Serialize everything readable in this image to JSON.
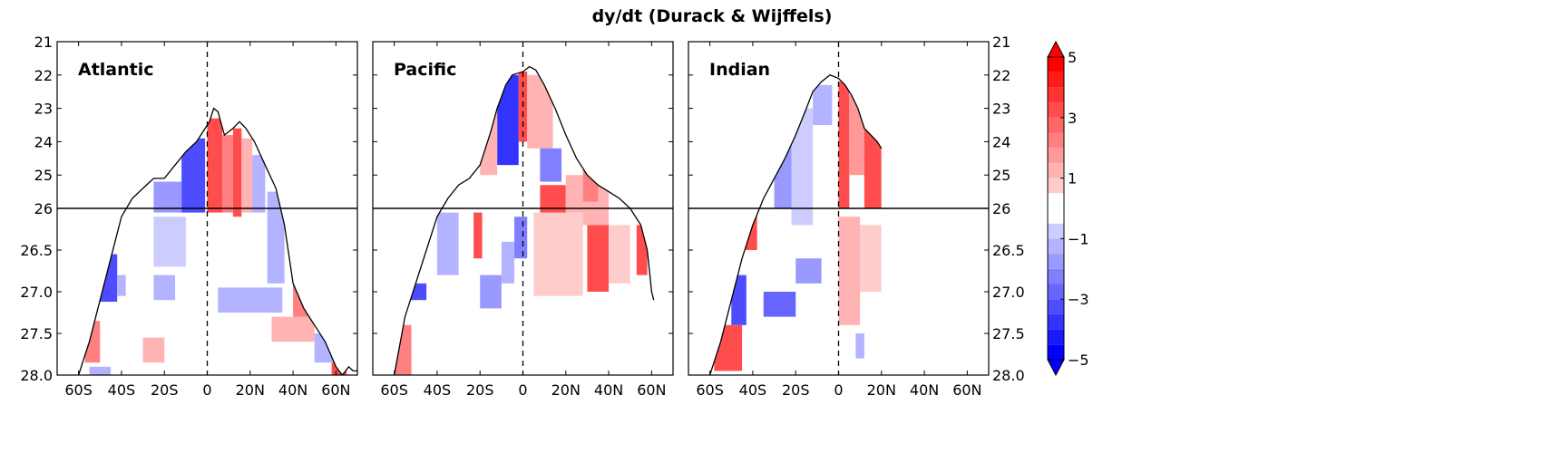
{
  "chart_data": {
    "type": "heatmap",
    "title": "dy/dt (Durack & Wijffels)",
    "x_tick_labels": [
      "60S",
      "40S",
      "20S",
      "0",
      "20N",
      "40N",
      "60N"
    ],
    "x_ticks": [
      -60,
      -40,
      -20,
      0,
      20,
      40,
      60
    ],
    "xlim": [
      -70,
      70
    ],
    "y_tick_labels_upper": [
      "21",
      "22",
      "23",
      "24",
      "25",
      "26"
    ],
    "y_tick_labels_lower": [
      "26",
      "26.5",
      "27.0",
      "27.5",
      "28.0"
    ],
    "upper_ylim": [
      21,
      26
    ],
    "lower_ylim": [
      26,
      28
    ],
    "panels": [
      {
        "name": "Atlantic",
        "outcrop": [
          [
            -60,
            28.0
          ],
          [
            -55,
            27.6
          ],
          [
            -50,
            27.1
          ],
          [
            -45,
            26.6
          ],
          [
            -40,
            26.1
          ],
          [
            -35,
            25.7
          ],
          [
            -30,
            25.4
          ],
          [
            -25,
            25.1
          ],
          [
            -20,
            25.1
          ],
          [
            -15,
            24.7
          ],
          [
            -10,
            24.3
          ],
          [
            -5,
            24.0
          ],
          [
            -2,
            23.7
          ],
          [
            1,
            23.4
          ],
          [
            3,
            23.0
          ],
          [
            5,
            23.1
          ],
          [
            8,
            23.8
          ],
          [
            12,
            23.6
          ],
          [
            15,
            23.4
          ],
          [
            18,
            23.6
          ],
          [
            22,
            24.0
          ],
          [
            27,
            24.7
          ],
          [
            32,
            25.4
          ],
          [
            36,
            26.2
          ],
          [
            40,
            26.9
          ],
          [
            45,
            27.2
          ],
          [
            50,
            27.4
          ],
          [
            55,
            27.6
          ],
          [
            60,
            27.9
          ],
          [
            63,
            28.0
          ],
          [
            66,
            27.9
          ],
          [
            68,
            27.95
          ],
          [
            70,
            27.95
          ]
        ],
        "regions": [
          {
            "x0": -12,
            "x1": -1,
            "y0": 23.9,
            "y1": 26.05,
            "v": -3.5
          },
          {
            "x0": -25,
            "x1": -12,
            "y0": 25.2,
            "y1": 26.05,
            "v": -2
          },
          {
            "x0": 0,
            "x1": 7,
            "y0": 23.3,
            "y1": 26.05,
            "v": 3.5
          },
          {
            "x0": 7,
            "x1": 12,
            "y0": 23.8,
            "y1": 26.05,
            "v": 2.5
          },
          {
            "x0": 12,
            "x1": 16,
            "y0": 23.6,
            "y1": 26.1,
            "v": 3.5
          },
          {
            "x0": 16,
            "x1": 21,
            "y0": 23.9,
            "y1": 26.05,
            "v": 1.5
          },
          {
            "x0": 21,
            "x1": 27,
            "y0": 24.4,
            "y1": 26.05,
            "v": -1.5
          },
          {
            "x0": 28,
            "x1": 36,
            "y0": 25.5,
            "y1": 26.9,
            "v": -1.5
          },
          {
            "x0": -50,
            "x1": -42,
            "y0": 26.55,
            "y1": 27.12,
            "v": -3.5
          },
          {
            "x0": -42,
            "x1": -38,
            "y0": 26.8,
            "y1": 27.05,
            "v": -1.5
          },
          {
            "x0": -57,
            "x1": -50,
            "y0": 27.35,
            "y1": 27.85,
            "v": 2.5
          },
          {
            "x0": -25,
            "x1": -10,
            "y0": 26.1,
            "y1": 26.7,
            "v": -1
          },
          {
            "x0": -25,
            "x1": -15,
            "y0": 26.8,
            "y1": 27.1,
            "v": -1.5
          },
          {
            "x0": -30,
            "x1": -20,
            "y0": 27.55,
            "y1": 27.85,
            "v": 1.5
          },
          {
            "x0": 5,
            "x1": 35,
            "y0": 26.95,
            "y1": 27.25,
            "v": -1.5
          },
          {
            "x0": 30,
            "x1": 50,
            "y0": 27.3,
            "y1": 27.6,
            "v": 1.5
          },
          {
            "x0": 40,
            "x1": 47,
            "y0": 26.9,
            "y1": 27.3,
            "v": 2.5
          },
          {
            "x0": 50,
            "x1": 60,
            "y0": 27.5,
            "y1": 27.85,
            "v": -1.5
          },
          {
            "x0": 58,
            "x1": 65,
            "y0": 27.85,
            "y1": 28.0,
            "v": 3.5
          },
          {
            "x0": -55,
            "x1": -45,
            "y0": 27.9,
            "y1": 28.0,
            "v": -1.5
          }
        ]
      },
      {
        "name": "Pacific",
        "outcrop": [
          [
            -60,
            28.0
          ],
          [
            -55,
            27.3
          ],
          [
            -50,
            26.9
          ],
          [
            -45,
            26.5
          ],
          [
            -40,
            26.1
          ],
          [
            -35,
            25.7
          ],
          [
            -30,
            25.3
          ],
          [
            -25,
            25.1
          ],
          [
            -20,
            24.7
          ],
          [
            -15,
            23.7
          ],
          [
            -12,
            23.0
          ],
          [
            -8,
            22.3
          ],
          [
            -5,
            22.0
          ],
          [
            0,
            21.9
          ],
          [
            3,
            21.75
          ],
          [
            6,
            21.85
          ],
          [
            10,
            22.3
          ],
          [
            15,
            23.0
          ],
          [
            20,
            23.8
          ],
          [
            25,
            24.5
          ],
          [
            30,
            25.0
          ],
          [
            35,
            25.3
          ],
          [
            40,
            25.5
          ],
          [
            45,
            25.7
          ],
          [
            50,
            26.0
          ],
          [
            55,
            26.2
          ],
          [
            58,
            26.5
          ],
          [
            60,
            27.0
          ],
          [
            61,
            27.1
          ]
        ],
        "regions": [
          {
            "x0": -12,
            "x1": -2,
            "y0": 22.0,
            "y1": 24.7,
            "v": -4
          },
          {
            "x0": -20,
            "x1": -12,
            "y0": 23.0,
            "y1": 25.0,
            "v": 1.5
          },
          {
            "x0": -2,
            "x1": 2,
            "y0": 21.9,
            "y1": 24.0,
            "v": 3.5
          },
          {
            "x0": 2,
            "x1": 14,
            "y0": 22.0,
            "y1": 24.2,
            "v": 1.5
          },
          {
            "x0": 8,
            "x1": 18,
            "y0": 24.2,
            "y1": 25.2,
            "v": -2.5
          },
          {
            "x0": 8,
            "x1": 20,
            "y0": 25.3,
            "y1": 26.4,
            "v": 3.5
          },
          {
            "x0": 20,
            "x1": 40,
            "y0": 25.0,
            "y1": 26.2,
            "v": 1.5
          },
          {
            "x0": 28,
            "x1": 35,
            "y0": 24.8,
            "y1": 25.8,
            "v": 2.5
          },
          {
            "x0": 5,
            "x1": 28,
            "y0": 26.05,
            "y1": 27.05,
            "v": 1
          },
          {
            "x0": 30,
            "x1": 40,
            "y0": 26.2,
            "y1": 27.0,
            "v": 3.5
          },
          {
            "x0": 40,
            "x1": 50,
            "y0": 26.2,
            "y1": 26.9,
            "v": 1
          },
          {
            "x0": 53,
            "x1": 58,
            "y0": 26.2,
            "y1": 26.8,
            "v": 3.5
          },
          {
            "x0": -40,
            "x1": -30,
            "y0": 26.05,
            "y1": 26.8,
            "v": -1.5
          },
          {
            "x0": -23,
            "x1": -19,
            "y0": 26.05,
            "y1": 26.6,
            "v": 3.5
          },
          {
            "x0": -20,
            "x1": -10,
            "y0": 26.8,
            "y1": 27.2,
            "v": -2
          },
          {
            "x0": -10,
            "x1": -4,
            "y0": 26.4,
            "y1": 26.9,
            "v": -1.5
          },
          {
            "x0": -55,
            "x1": -45,
            "y0": 26.9,
            "y1": 27.1,
            "v": -3.5
          },
          {
            "x0": -60,
            "x1": -52,
            "y0": 27.4,
            "y1": 28.0,
            "v": 2.5
          },
          {
            "x0": -4,
            "x1": 2,
            "y0": 26.1,
            "y1": 26.6,
            "v": -2.5
          }
        ]
      },
      {
        "name": "Indian",
        "outcrop": [
          [
            -60,
            28.0
          ],
          [
            -55,
            27.6
          ],
          [
            -50,
            27.1
          ],
          [
            -45,
            26.6
          ],
          [
            -40,
            26.2
          ],
          [
            -35,
            25.7
          ],
          [
            -30,
            25.1
          ],
          [
            -25,
            24.5
          ],
          [
            -20,
            23.8
          ],
          [
            -15,
            23.0
          ],
          [
            -12,
            22.5
          ],
          [
            -8,
            22.2
          ],
          [
            -4,
            22.0
          ],
          [
            0,
            22.1
          ],
          [
            3,
            22.3
          ],
          [
            6,
            22.6
          ],
          [
            9,
            23.0
          ],
          [
            12,
            23.6
          ],
          [
            15,
            23.8
          ],
          [
            18,
            24.0
          ],
          [
            20,
            24.2
          ]
        ],
        "regions": [
          {
            "x0": -45,
            "x1": -38,
            "y0": 24.8,
            "y1": 26.5,
            "v": 3.5
          },
          {
            "x0": -30,
            "x1": -22,
            "y0": 24.0,
            "y1": 26.0,
            "v": -2
          },
          {
            "x0": -22,
            "x1": -12,
            "y0": 23.0,
            "y1": 26.2,
            "v": -1
          },
          {
            "x0": -12,
            "x1": -3,
            "y0": 22.3,
            "y1": 23.5,
            "v": -1.5
          },
          {
            "x0": 0,
            "x1": 5,
            "y0": 22.2,
            "y1": 26.0,
            "v": 3.5
          },
          {
            "x0": 5,
            "x1": 12,
            "y0": 22.6,
            "y1": 25.0,
            "v": 2
          },
          {
            "x0": 12,
            "x1": 20,
            "y0": 23.6,
            "y1": 26.0,
            "v": 3.5
          },
          {
            "x0": -50,
            "x1": -43,
            "y0": 26.8,
            "y1": 27.4,
            "v": -3.5
          },
          {
            "x0": -58,
            "x1": -45,
            "y0": 27.4,
            "y1": 27.95,
            "v": 3.5
          },
          {
            "x0": -35,
            "x1": -20,
            "y0": 27.0,
            "y1": 27.3,
            "v": -3
          },
          {
            "x0": -20,
            "x1": -8,
            "y0": 26.6,
            "y1": 26.9,
            "v": -2
          },
          {
            "x0": 0,
            "x1": 10,
            "y0": 26.1,
            "y1": 27.4,
            "v": 1.5
          },
          {
            "x0": 10,
            "x1": 20,
            "y0": 26.2,
            "y1": 27.0,
            "v": 1
          },
          {
            "x0": 8,
            "x1": 12,
            "y0": 27.5,
            "y1": 27.8,
            "v": -1.5
          }
        ]
      }
    ],
    "colorbar": {
      "levels": [
        -5,
        -4.5,
        -4,
        -3.5,
        -3,
        -2.5,
        -2,
        -1.5,
        -1,
        -0.5,
        0.5,
        1,
        1.5,
        2,
        2.5,
        3,
        3.5,
        4,
        4.5,
        5
      ],
      "tick_labels": [
        "5",
        "3",
        "1",
        "−1",
        "−3",
        "−5"
      ],
      "tick_values": [
        5,
        3,
        1,
        -1,
        -3,
        -5
      ],
      "extend": "both",
      "cmap": "bwr"
    },
    "hline_at": 26,
    "vline_at": 0,
    "grid": false
  }
}
